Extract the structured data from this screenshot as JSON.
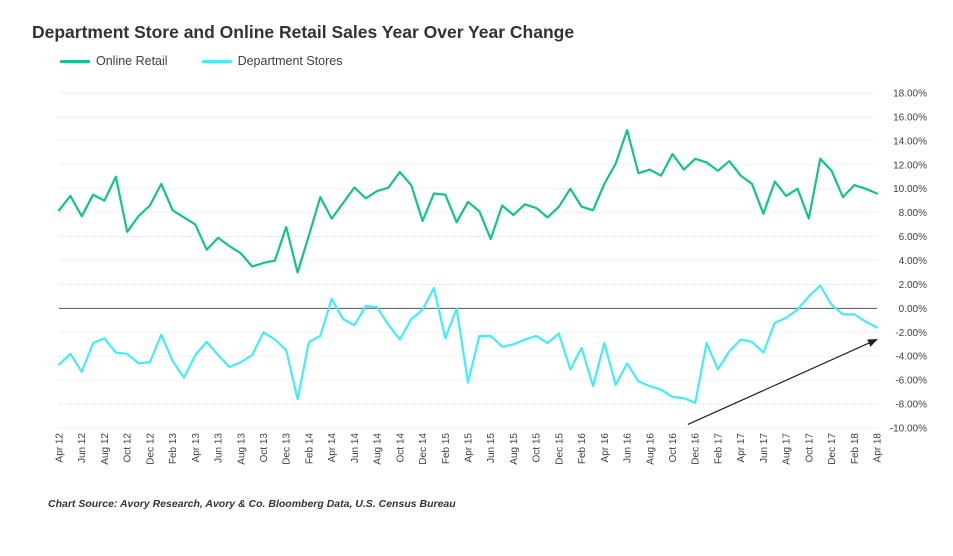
{
  "chart_data": {
    "type": "line",
    "title": "Department Store and Online Retail Sales Year Over Year Change",
    "x": [
      "Apr 12",
      "May 12",
      "Jun 12",
      "Jul 12",
      "Aug 12",
      "Sep 12",
      "Oct 12",
      "Nov 12",
      "Dec 12",
      "Jan 13",
      "Feb 13",
      "Mar 13",
      "Apr 13",
      "May 13",
      "Jun 13",
      "Jul 13",
      "Aug 13",
      "Sep 13",
      "Oct 13",
      "Nov 13",
      "Dec 13",
      "Jan 14",
      "Feb 14",
      "Mar 14",
      "Apr 14",
      "May 14",
      "Jun 14",
      "Jul 14",
      "Aug 14",
      "Sep 14",
      "Oct 14",
      "Nov 14",
      "Dec 14",
      "Jan 15",
      "Feb 15",
      "Mar 15",
      "Apr 15",
      "May 15",
      "Jun 15",
      "Jul 15",
      "Aug 15",
      "Sep 15",
      "Oct 15",
      "Nov 15",
      "Dec 15",
      "Jan 16",
      "Feb 16",
      "Mar 16",
      "Apr 16",
      "May 16",
      "Jun 16",
      "Jul 16",
      "Aug 16",
      "Sep 16",
      "Oct 16",
      "Nov 16",
      "Dec 16",
      "Jan 17",
      "Feb 17",
      "Mar 17",
      "Apr 17",
      "May 17",
      "Jun 17",
      "Jul 17",
      "Aug 17",
      "Sep 17",
      "Oct 17",
      "Nov 17",
      "Dec 17",
      "Jan 18",
      "Feb 18",
      "Mar 18",
      "Apr 18"
    ],
    "x_tick_labels": [
      "Apr 12",
      "Jun 12",
      "Aug 12",
      "Oct 12",
      "Dec 12",
      "Feb 13",
      "Apr 13",
      "Jun 13",
      "Aug 13",
      "Oct 13",
      "Dec 13",
      "Feb 14",
      "Apr 14",
      "Jun 14",
      "Aug 14",
      "Oct 14",
      "Dec 14",
      "Feb 15",
      "Apr 15",
      "Jun 15",
      "Aug 15",
      "Oct 15",
      "Dec 15",
      "Feb 16",
      "Apr 16",
      "Jun 16",
      "Aug 16",
      "Oct 16",
      "Dec 16",
      "Feb 17",
      "Apr 17",
      "Jun 17",
      "Aug 17",
      "Oct 17",
      "Dec 17",
      "Feb 18",
      "Apr 18"
    ],
    "y_tick_labels": [
      "18.00%",
      "16.00%",
      "14.00%",
      "12.00%",
      "10.00%",
      "8.00%",
      "6.00%",
      "4.00%",
      "2.00%",
      "0.00%",
      "-2.00%",
      "-4.00%",
      "-6.00%",
      "-8.00%",
      "-10.00%"
    ],
    "ylim": [
      -10,
      18
    ],
    "y_unit": "%",
    "grid": "horizontal dotted",
    "legend_position": "top-left",
    "series": [
      {
        "name": "Online Retail",
        "color": "#13c48a",
        "values": [
          8.2,
          9.4,
          7.7,
          9.5,
          9.0,
          11.0,
          6.4,
          7.7,
          8.6,
          10.4,
          8.2,
          7.6,
          7.0,
          4.9,
          5.9,
          5.2,
          4.6,
          3.5,
          3.8,
          4.0,
          6.8,
          3.0,
          6.1,
          9.3,
          7.5,
          8.8,
          10.1,
          9.2,
          9.8,
          10.1,
          11.4,
          10.3,
          7.3,
          9.6,
          9.5,
          7.2,
          8.9,
          8.1,
          5.8,
          8.6,
          7.8,
          8.7,
          8.4,
          7.6,
          8.5,
          10.0,
          8.5,
          8.2,
          10.4,
          12.1,
          14.9,
          11.3,
          11.6,
          11.1,
          12.9,
          11.6,
          12.5,
          12.2,
          11.5,
          12.3,
          11.1,
          10.4,
          7.9,
          10.6,
          9.4,
          10.0,
          7.5,
          12.5,
          11.5,
          9.3,
          10.3,
          10.0,
          9.6
        ]
      },
      {
        "name": "Department Stores",
        "color": "#45ecf6",
        "values": [
          -4.7,
          -3.8,
          -5.3,
          -2.9,
          -2.5,
          -3.7,
          -3.8,
          -4.6,
          -4.5,
          -2.2,
          -4.4,
          -5.8,
          -3.9,
          -2.8,
          -3.9,
          -4.9,
          -4.5,
          -3.9,
          -2.0,
          -2.6,
          -3.5,
          -7.6,
          -2.8,
          -2.3,
          0.8,
          -0.9,
          -1.4,
          0.2,
          0.1,
          -1.4,
          -2.6,
          -0.9,
          -0.1,
          1.7,
          -2.5,
          0.0,
          -6.2,
          -2.3,
          -2.3,
          -3.2,
          -3.0,
          -2.6,
          -2.3,
          -2.9,
          -2.1,
          -5.1,
          -3.3,
          -6.5,
          -2.9,
          -6.4,
          -4.6,
          -6.1,
          -6.5,
          -6.8,
          -7.4,
          -7.5,
          -7.9,
          -2.9,
          -5.1,
          -3.6,
          -2.6,
          -2.8,
          -3.7,
          -1.2,
          -0.8,
          -0.1,
          1.0,
          1.9,
          0.3,
          -0.5,
          -0.5,
          -1.1,
          -1.6
        ]
      }
    ],
    "annotations": [
      {
        "type": "arrow",
        "from": [
          "Nov 16",
          -9.7
        ],
        "to": [
          "Apr 18",
          -2.6
        ],
        "color": "#222222"
      }
    ],
    "source": "Chart Source:  Avory Research, Avory & Co. Bloomberg Data, U.S. Census Bureau"
  }
}
